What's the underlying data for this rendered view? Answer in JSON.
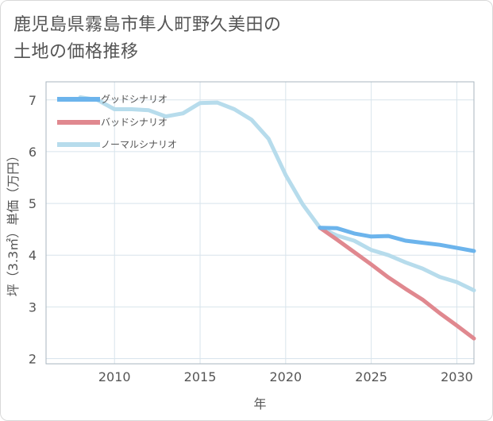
{
  "title_lines": [
    "鹿児島県霧島市隼人町野久美田の",
    "土地の価格推移"
  ],
  "colors": {
    "good": "#6cb4ec",
    "bad": "#e0888f",
    "normal": "#b7dcec",
    "grid": "#d8e4ec",
    "text": "#555555"
  },
  "chart_data": {
    "type": "line",
    "title": "鹿児島県霧島市隼人町野久美田の土地の価格推移",
    "xlabel": "年",
    "ylabel": "坪（3.3㎡）単価（万円）",
    "xlim": [
      2006,
      2031
    ],
    "ylim": [
      1.9,
      7.35
    ],
    "xticks": [
      2010,
      2015,
      2020,
      2025,
      2030
    ],
    "yticks": [
      2,
      3,
      4,
      5,
      6,
      7
    ],
    "legend_position": "top-left",
    "series": [
      {
        "name": "グッドシナリオ",
        "key": "good",
        "x": [
          2022,
          2023,
          2024,
          2025,
          2026,
          2027,
          2028,
          2029,
          2030,
          2031
        ],
        "y": [
          4.53,
          4.52,
          4.42,
          4.36,
          4.37,
          4.28,
          4.24,
          4.2,
          4.14,
          4.08
        ]
      },
      {
        "name": "バッドシナリオ",
        "key": "bad",
        "x": [
          2022,
          2023,
          2024,
          2025,
          2026,
          2027,
          2028,
          2029,
          2030,
          2031
        ],
        "y": [
          4.53,
          4.3,
          4.06,
          3.82,
          3.57,
          3.35,
          3.14,
          2.88,
          2.64,
          2.39
        ]
      },
      {
        "name": "ノーマルシナリオ",
        "key": "normal",
        "x": [
          2008,
          2009,
          2010,
          2011,
          2012,
          2013,
          2014,
          2015,
          2016,
          2017,
          2018,
          2019,
          2020,
          2021,
          2022,
          2023,
          2024,
          2025,
          2026,
          2027,
          2028,
          2029,
          2030,
          2031
        ],
        "y": [
          7.05,
          7.0,
          6.82,
          6.82,
          6.8,
          6.68,
          6.74,
          6.94,
          6.95,
          6.82,
          6.62,
          6.25,
          5.55,
          4.98,
          4.53,
          4.38,
          4.28,
          4.1,
          4.0,
          3.86,
          3.74,
          3.58,
          3.48,
          3.32
        ]
      }
    ]
  }
}
